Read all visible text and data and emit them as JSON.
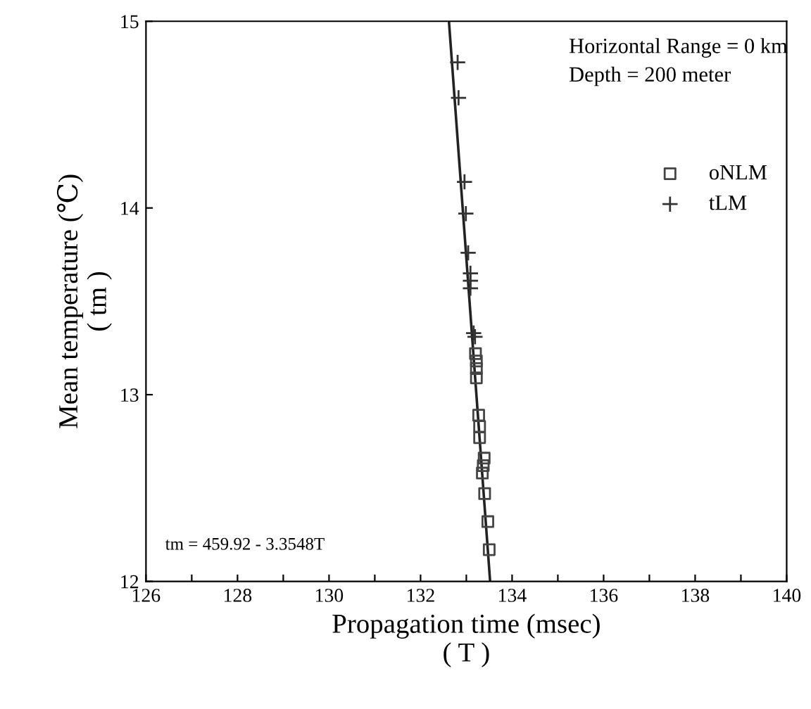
{
  "chart_data": {
    "type": "scatter",
    "xlabel": "Propagation time (msec)\n( T )",
    "ylabel": "Mean temperature (℃)\n( tm )",
    "xlim": [
      126,
      140
    ],
    "ylim": [
      12,
      15
    ],
    "xticks": [
      126,
      {
        "value": 127,
        "label": null
      },
      128,
      {
        "value": 129,
        "label": null
      },
      130,
      {
        "value": 131,
        "label": null
      },
      132,
      {
        "value": 133,
        "label": null
      },
      134,
      {
        "value": 135,
        "label": null
      },
      136,
      {
        "value": 137,
        "label": null
      },
      138,
      {
        "value": 139,
        "label": null
      },
      140
    ],
    "yticks": [
      12,
      13,
      14,
      15
    ],
    "grid": false,
    "legend": "right",
    "series": [
      {
        "name": "oNLM",
        "color": "#444444",
        "marker": "square",
        "x": [
          133.2,
          133.22,
          133.22,
          133.22,
          133.27,
          133.29,
          133.29,
          133.39,
          133.37,
          133.35,
          133.4,
          133.47,
          133.5
        ],
        "values": [
          13.22,
          13.18,
          13.14,
          13.09,
          12.89,
          12.83,
          12.77,
          12.66,
          12.62,
          12.58,
          12.47,
          12.32,
          12.17
        ]
      },
      {
        "name": "tLM",
        "color": "#333333",
        "marker": "cross",
        "x": [
          132.81,
          132.83,
          132.96,
          132.99,
          133.04,
          133.09,
          133.09,
          133.09,
          133.16,
          133.19
        ],
        "values": [
          14.78,
          14.59,
          14.14,
          13.97,
          13.76,
          13.65,
          13.61,
          13.57,
          13.33,
          13.31
        ]
      },
      {
        "type": "line",
        "color": "#222222",
        "line_style": "solid",
        "marker": "none",
        "x": [
          132.62,
          133.52
        ],
        "values": [
          15,
          12
        ]
      }
    ],
    "annotations": [
      "Horizontal Range = 0 km\nDepth = 200 meter",
      "tm = 459.92 - 3.3548T"
    ]
  }
}
